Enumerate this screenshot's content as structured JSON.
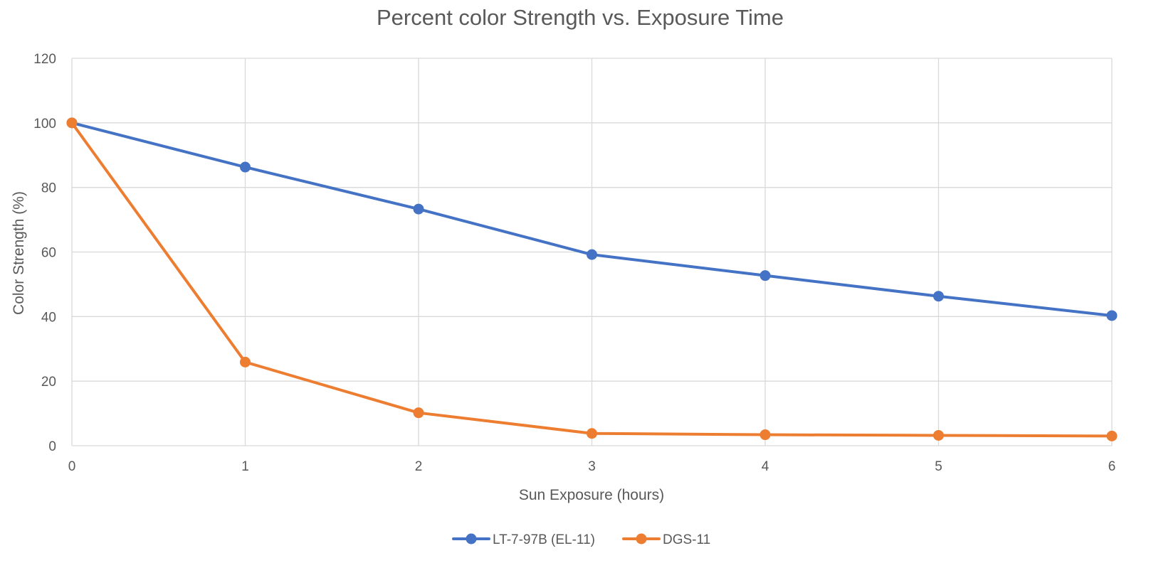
{
  "chart_data": {
    "type": "line",
    "title": "Percent color Strength vs. Exposure Time",
    "xlabel": "Sun Exposure (hours)",
    "ylabel": "Color Strength (%)",
    "x": [
      0,
      1,
      2,
      3,
      4,
      5,
      6
    ],
    "xlim": [
      0,
      6
    ],
    "ylim": [
      0,
      120
    ],
    "x_ticks": [
      "0",
      "1",
      "2",
      "3",
      "4",
      "5",
      "6"
    ],
    "y_ticks": [
      "0",
      "20",
      "40",
      "60",
      "80",
      "100",
      "120"
    ],
    "grid": true,
    "legend_position": "bottom",
    "series": [
      {
        "name": "LT-7-97B (EL-11)",
        "color": "#4472c4",
        "values": [
          100,
          86.3,
          73.3,
          59.2,
          52.7,
          46.3,
          40.3
        ]
      },
      {
        "name": "DGS-11",
        "color": "#ed7d31",
        "values": [
          100,
          25.9,
          10.2,
          3.8,
          3.4,
          3.2,
          3.0
        ]
      }
    ]
  }
}
